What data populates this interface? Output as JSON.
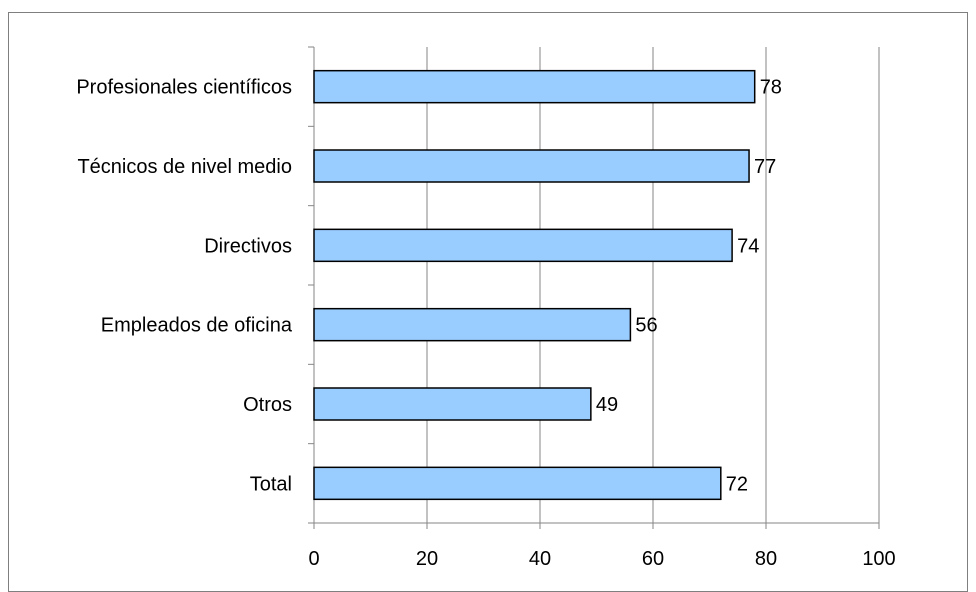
{
  "chart_data": {
    "type": "bar",
    "orientation": "horizontal",
    "title": "",
    "xlabel": "",
    "ylabel": "",
    "categories": [
      "Profesionales científicos",
      "Técnicos de nivel medio",
      "Directivos",
      "Empleados de oficina",
      "Otros",
      "Total"
    ],
    "values": [
      78,
      77,
      74,
      56,
      49,
      72
    ],
    "data_labels": [
      "78",
      "77",
      "74",
      "56",
      "49",
      "72"
    ],
    "xlim": [
      0,
      100
    ],
    "xticks": [
      0,
      20,
      40,
      60,
      80,
      100
    ],
    "xtick_labels": [
      "0",
      "20",
      "40",
      "60",
      "80",
      "100"
    ],
    "grid": "vertical",
    "legend": "none",
    "colors": {
      "bar_fill": "#99ccff",
      "bar_stroke": "#000000",
      "gridline": "#868686",
      "axis": "#868686"
    }
  }
}
